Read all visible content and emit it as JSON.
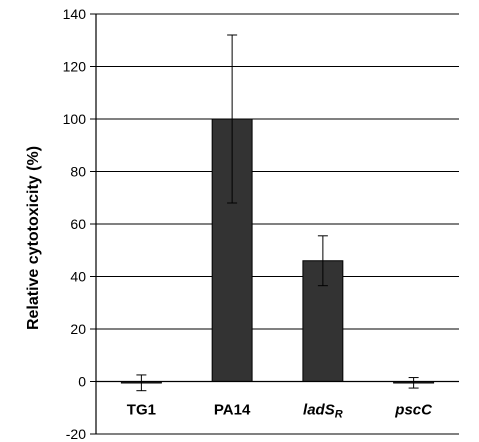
{
  "chart_data": {
    "type": "bar",
    "title": "",
    "xlabel": "",
    "ylabel": "Relative cytotoxicity (%)",
    "ylim": [
      -20,
      140
    ],
    "yticks": [
      -20,
      0,
      20,
      40,
      60,
      80,
      100,
      120,
      140
    ],
    "grid": true,
    "legend": "none",
    "categories": [
      {
        "label": "TG1",
        "italic": false,
        "subscript": ""
      },
      {
        "label": "PA14",
        "italic": false,
        "subscript": ""
      },
      {
        "label": "ladS",
        "italic": true,
        "subscript": "R"
      },
      {
        "label": "pscC",
        "italic": true,
        "subscript": ""
      }
    ],
    "values": [
      -0.5,
      100,
      46,
      -0.5
    ],
    "errors": [
      3,
      32,
      9.5,
      2
    ],
    "bar_color": "#333333"
  }
}
